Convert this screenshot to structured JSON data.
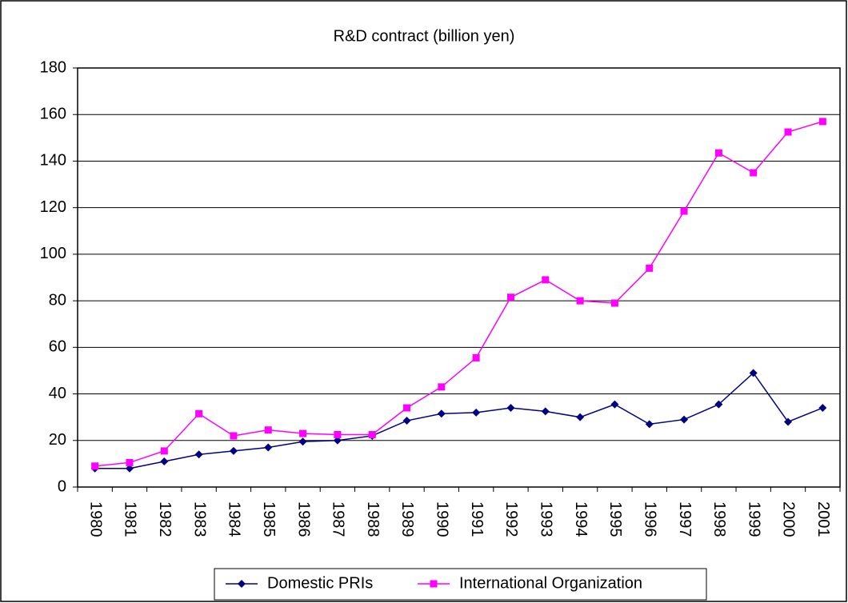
{
  "chart_data": {
    "type": "line",
    "title": "R&D contract (billion yen)",
    "categories": [
      "1980",
      "1981",
      "1982",
      "1983",
      "1984",
      "1985",
      "1986",
      "1987",
      "1988",
      "1989",
      "1990",
      "1991",
      "1992",
      "1993",
      "1994",
      "1995",
      "1996",
      "1997",
      "1998",
      "1999",
      "2000",
      "2001"
    ],
    "series": [
      {
        "name": "Domestic PRIs",
        "color": "#000080",
        "marker": "diamond",
        "values": [
          8,
          8,
          11,
          14,
          15.5,
          17,
          19.5,
          20,
          22,
          28.5,
          31.5,
          32,
          34,
          32.5,
          30,
          35.5,
          27,
          29,
          35.5,
          49,
          28,
          34
        ]
      },
      {
        "name": "International Organization",
        "color": "#ff00ff",
        "marker": "square",
        "values": [
          9,
          10.5,
          15.5,
          31.5,
          22,
          24.5,
          23,
          22.5,
          22.5,
          34,
          43,
          55.5,
          81.5,
          89,
          80,
          79,
          94,
          118.5,
          143.5,
          135,
          152.5,
          157
        ]
      }
    ],
    "ylim": [
      0,
      180
    ],
    "yticks": [
      0,
      20,
      40,
      60,
      80,
      100,
      120,
      140,
      160,
      180
    ],
    "grid": true,
    "legend": "bottom"
  }
}
